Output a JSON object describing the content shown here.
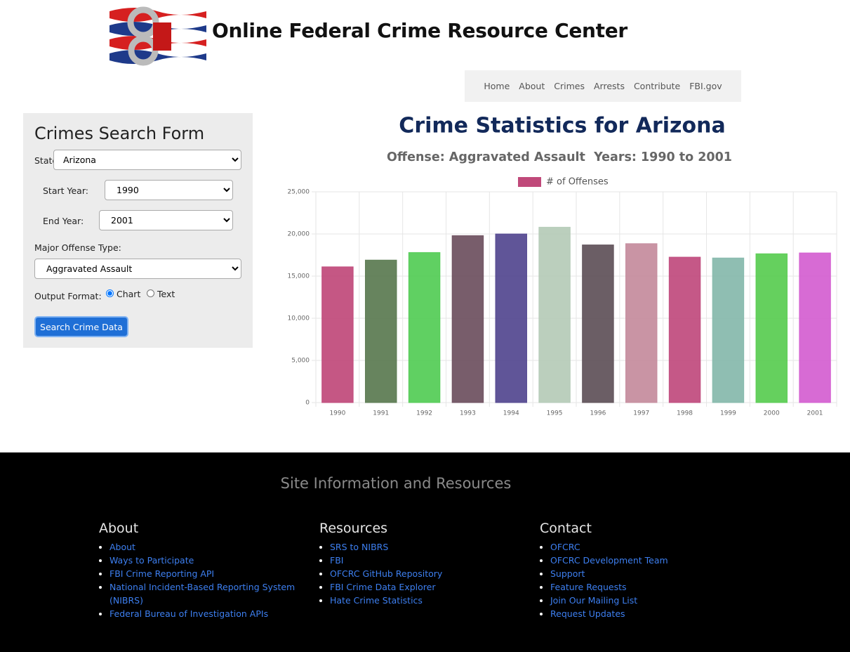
{
  "header": {
    "title": "Online Federal Crime Resource Center"
  },
  "nav": [
    "Home",
    "About",
    "Crimes",
    "Arrests",
    "Contribute",
    "FBI.gov"
  ],
  "form": {
    "title": "Crimes Search Form",
    "state_label": "State:",
    "state": "Arizona",
    "start_label": "Start Year:",
    "start": "1990",
    "end_label": "End Year:",
    "end": "2001",
    "offense_label": "Major Offense Type:",
    "offense": "Aggravated Assault",
    "output_label": "Output Format:",
    "options": [
      "Chart",
      "Text"
    ],
    "button": "Search Crime Data"
  },
  "chart_data": {
    "type": "bar",
    "title": "Crime Statistics for Arizona",
    "subtitle": "Offense: Aggravated Assault  Years: 1990 to 2001",
    "categories": [
      "1990",
      "1991",
      "1992",
      "1993",
      "1994",
      "1995",
      "1996",
      "1997",
      "1998",
      "1999",
      "2000",
      "2001"
    ],
    "series": [
      {
        "name": "# of Offenses",
        "color": "#c0497a",
        "values": [
          16100,
          16900,
          17800,
          19800,
          20000,
          20800,
          18700,
          18850,
          17250,
          17150,
          17650,
          17750
        ],
        "colors": [
          "#c0497a",
          "#5a7a50",
          "#52cc55",
          "#6d4f5e",
          "#52478f",
          "#b5cbb7",
          "#5e5058",
          "#c48b9c",
          "#c04a7d",
          "#85b8ab",
          "#58cc50",
          "#d45ed0"
        ]
      }
    ],
    "ylim": [
      0,
      25000
    ],
    "yticks": [
      0,
      {
        "value": 5000,
        "label": "5,000"
      },
      {
        "value": 10000,
        "label": "10,000"
      },
      {
        "value": 15000,
        "label": "15,000"
      },
      {
        "value": 20000,
        "label": "20,000"
      },
      {
        "value": 25000,
        "label": "25,000"
      }
    ],
    "grid": true,
    "legend": "top"
  },
  "footer": {
    "title": "Site Information and Resources",
    "columns": [
      {
        "heading": "About",
        "links": [
          "About",
          "Ways to Participate",
          "FBI Crime Reporting API",
          "National Incident-Based Reporting System (NIBRS)",
          "Federal Bureau of Investigation APIs"
        ]
      },
      {
        "heading": "Resources",
        "links": [
          "SRS to NIBRS",
          "FBI",
          "OFCRC GitHub Repository",
          "FBI Crime Data Explorer",
          "Hate Crime Statistics"
        ]
      },
      {
        "heading": "Contact",
        "links": [
          "OFCRC",
          "OFCRC Development Team",
          "Support",
          "Feature Requests",
          "Join Our Mailing List",
          "Request Updates"
        ]
      }
    ]
  }
}
